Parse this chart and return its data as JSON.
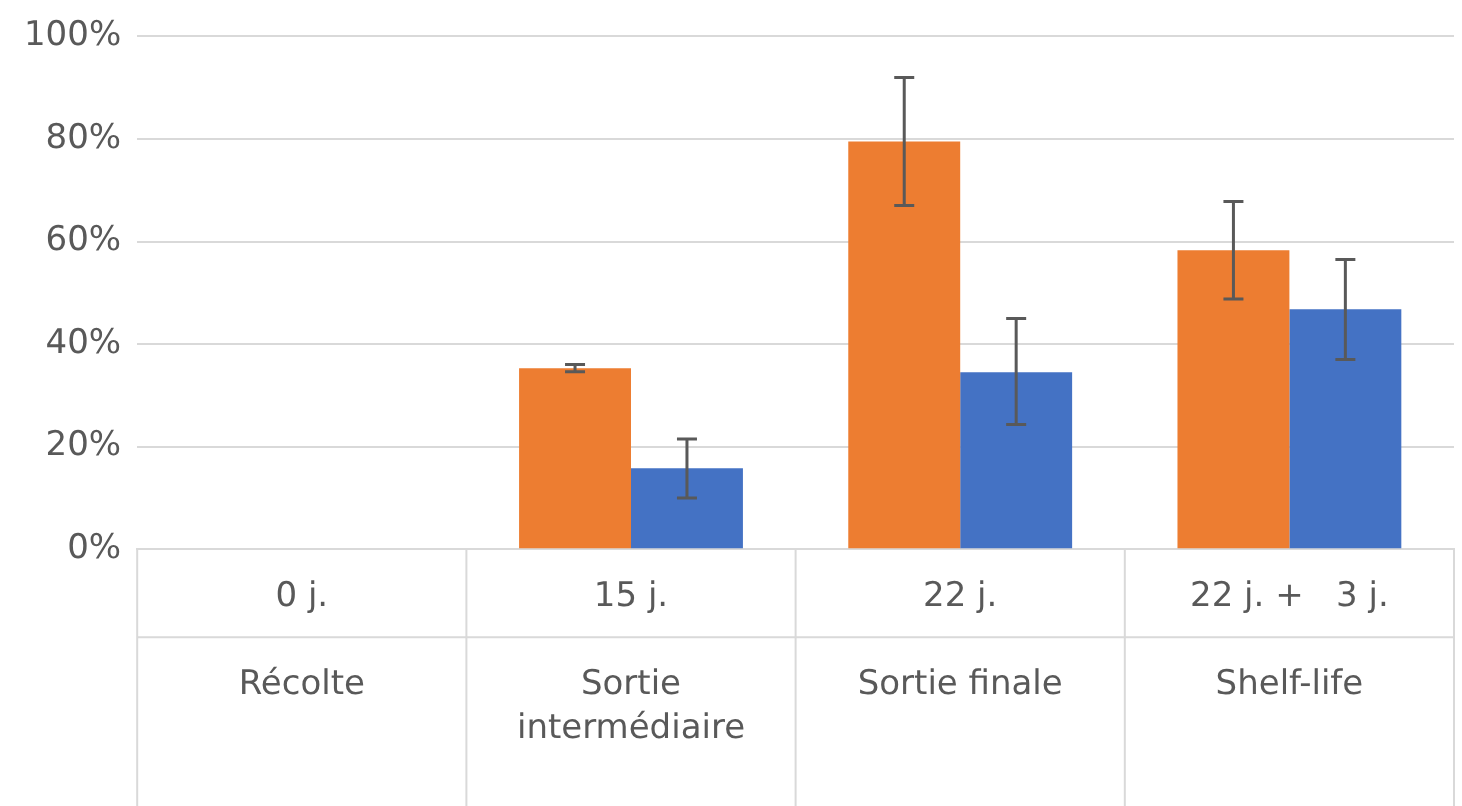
{
  "chart_data": {
    "type": "bar",
    "categories": [
      "0 j.",
      "15 j.",
      "22 j.",
      "22 j. +   3 j."
    ],
    "series": [
      {
        "color": "#ed7d31",
        "values": [
          null,
          35.3,
          79.5,
          58.3
        ],
        "errors": [
          null,
          [
            34.6,
            36
          ],
          [
            67,
            92
          ],
          [
            48.8,
            67.8
          ]
        ]
      },
      {
        "color": "#4472c4",
        "values": [
          null,
          15.8,
          34.5,
          46.8
        ],
        "errors": [
          null,
          [
            10,
            21.5
          ],
          [
            24.3,
            45
          ],
          [
            37,
            56.5
          ]
        ]
      }
    ],
    "annotations": [
      "Récolte",
      "Sortie intermédiaire",
      "Sortie finale",
      "Shelf-life"
    ],
    "ylim": [
      0,
      100
    ],
    "yticks": [
      {
        "value": 0,
        "label": "0%"
      },
      {
        "value": 20,
        "label": "20%"
      },
      {
        "value": 40,
        "label": "40%"
      },
      {
        "value": 60,
        "label": "60%"
      },
      {
        "value": 80,
        "label": "80%"
      },
      {
        "value": 100,
        "label": "100%"
      }
    ],
    "grid": "y",
    "legend": false
  }
}
